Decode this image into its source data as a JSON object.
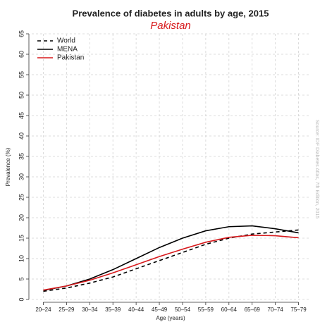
{
  "chart_data": {
    "type": "line",
    "title": "Prevalence of diabetes in adults by age, 2015",
    "subtitle": "Pakistan",
    "x_label": "Age (years)",
    "y_label": "Prevalence (%)",
    "source": "Source: IDF Diabetes Atlas, 7th Edition, 2015",
    "categories": [
      "20–24",
      "25–29",
      "30–34",
      "35–39",
      "40–44",
      "45–49",
      "50–54",
      "55–59",
      "60–64",
      "65–69",
      "70–74",
      "75–79"
    ],
    "series": [
      {
        "name": "World",
        "color": "#000000",
        "linestyle": "dashed",
        "values": [
          2.0,
          2.8,
          4.0,
          5.5,
          7.5,
          9.5,
          11.5,
          13.5,
          15.0,
          16.0,
          16.5,
          17.0
        ]
      },
      {
        "name": "MENA",
        "color": "#000000",
        "linestyle": "solid",
        "values": [
          2.2,
          3.3,
          5.0,
          7.3,
          10.0,
          12.7,
          15.0,
          16.8,
          17.8,
          18.0,
          17.3,
          16.3
        ]
      },
      {
        "name": "Pakistan",
        "color": "#d7191c",
        "linestyle": "solid",
        "values": [
          2.3,
          3.3,
          4.7,
          6.5,
          8.5,
          10.5,
          12.3,
          14.0,
          15.2,
          15.7,
          15.6,
          15.1
        ]
      }
    ],
    "ylim": [
      0,
      65
    ],
    "yticks": [
      0,
      5,
      10,
      15,
      20,
      25,
      30,
      35,
      40,
      45,
      50,
      55,
      60,
      65
    ],
    "grid": true,
    "legend": "top-left"
  }
}
